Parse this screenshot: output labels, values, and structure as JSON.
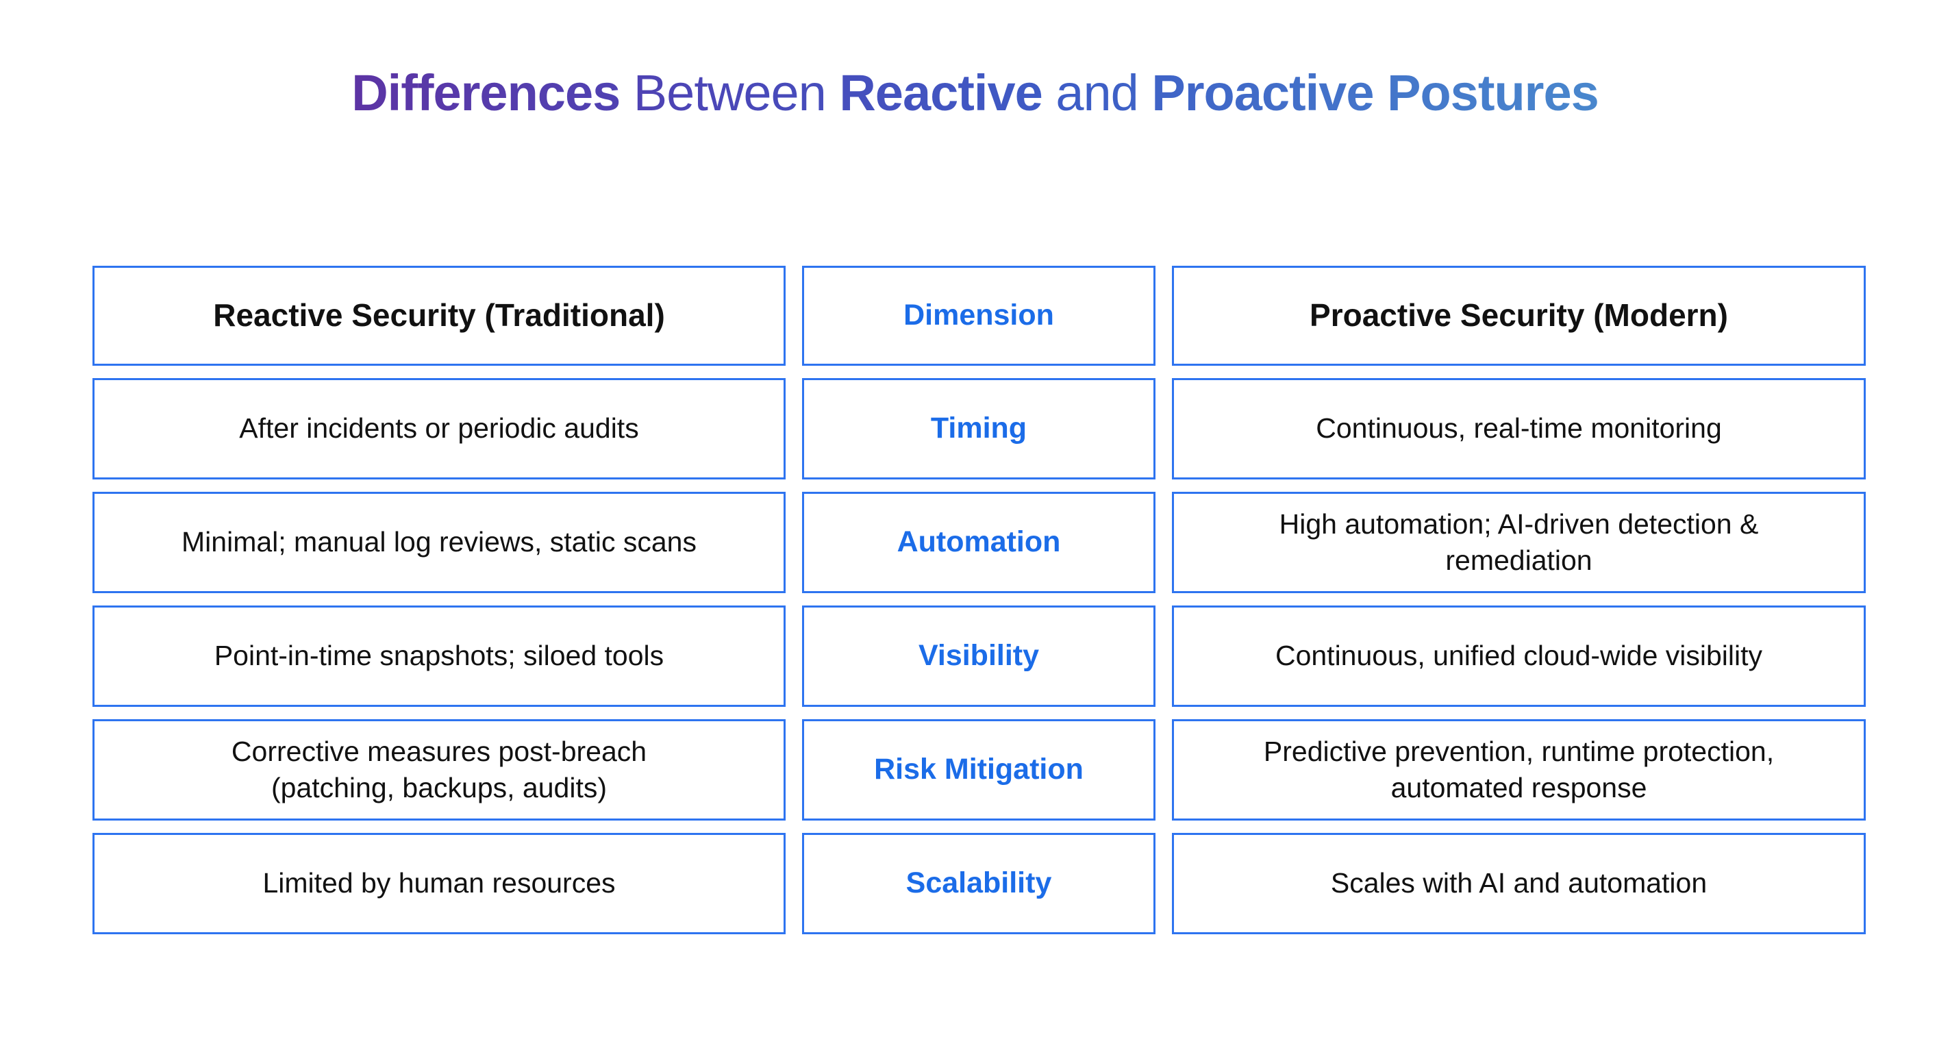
{
  "title": {
    "segments": [
      {
        "text": "Differences"
      },
      {
        "text": " Between "
      },
      {
        "text": "Reactive"
      },
      {
        "text": " and "
      },
      {
        "text": "Proactive Postures"
      }
    ],
    "gradient_start": "#5C34A4",
    "gradient_end": "#4987CD"
  },
  "table": {
    "headers": {
      "reactive": "Reactive Security (Traditional)",
      "dimension": "Dimension",
      "proactive": "Proactive Security (Modern)"
    },
    "rows": [
      {
        "reactive": "After incidents or periodic audits",
        "dimension": "Timing",
        "proactive": "Continuous, real-time monitoring"
      },
      {
        "reactive": "Minimal; manual log reviews, static scans",
        "dimension": "Automation",
        "proactive": "High automation; AI-driven detection &\nremediation"
      },
      {
        "reactive": "Point-in-time snapshots; siloed tools",
        "dimension": "Visibility",
        "proactive": "Continuous, unified cloud-wide visibility"
      },
      {
        "reactive": "Corrective measures post-breach\n(patching, backups, audits)",
        "dimension": "Risk Mitigation",
        "proactive": "Predictive prevention, runtime protection,\nautomated response"
      },
      {
        "reactive": "Limited by human resources",
        "dimension": "Scalability",
        "proactive": "Scales with AI and automation"
      }
    ],
    "colors": {
      "border": "#2E74F0",
      "dimension_text": "#1B6CE8",
      "body_text": "#111111"
    }
  }
}
